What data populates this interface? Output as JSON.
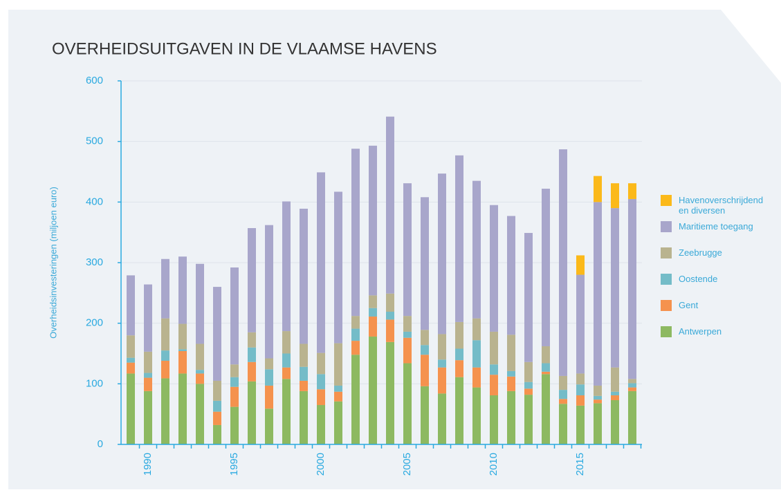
{
  "chart_data": {
    "type": "stacked_bar",
    "title": "OVERHEIDSUITGAVEN IN DE VLAAMSE HAVENS",
    "y_label": "Overheidsinvesteringen (miljoen euro)",
    "categories": [
      null,
      "1990",
      null,
      null,
      null,
      null,
      "1995",
      null,
      null,
      null,
      null,
      "2000",
      null,
      null,
      null,
      null,
      "2005",
      null,
      null,
      null,
      null,
      "2010",
      null,
      null,
      null,
      null,
      "2015",
      null,
      null,
      null
    ],
    "ylim": [
      0,
      600
    ],
    "yticks": [
      0,
      100,
      200,
      300,
      400,
      500,
      600
    ],
    "grid": true,
    "series": [
      {
        "name": "Antwerpen",
        "color": "#8db961",
        "values": [
          117,
          88,
          109,
          117,
          100,
          32,
          62,
          104,
          59,
          108,
          88,
          65,
          71,
          148,
          178,
          169,
          134,
          96,
          84,
          111,
          94,
          81,
          88,
          82,
          116,
          67,
          64,
          68,
          73,
          88
        ]
      },
      {
        "name": "Gent",
        "color": "#f5924e",
        "values": [
          18,
          22,
          29,
          37,
          17,
          22,
          33,
          32,
          38,
          19,
          17,
          26,
          16,
          23,
          33,
          37,
          42,
          52,
          43,
          28,
          33,
          34,
          24,
          10,
          4,
          8,
          17,
          6,
          8,
          6
        ]
      },
      {
        "name": "Oostende",
        "color": "#74bcc8",
        "values": [
          8,
          8,
          17,
          3,
          6,
          18,
          16,
          24,
          27,
          23,
          23,
          25,
          10,
          20,
          14,
          13,
          10,
          16,
          13,
          19,
          45,
          17,
          9,
          11,
          14,
          15,
          18,
          6,
          6,
          7
        ]
      },
      {
        "name": "Zeebrugge",
        "color": "#b9b38f",
        "values": [
          37,
          35,
          53,
          42,
          43,
          33,
          21,
          25,
          18,
          37,
          38,
          35,
          70,
          21,
          21,
          30,
          26,
          25,
          42,
          44,
          36,
          54,
          60,
          33,
          28,
          23,
          18,
          17,
          40,
          7
        ]
      },
      {
        "name": "Maritieme toegang",
        "color": "#a8a6cb",
        "values": [
          99,
          111,
          98,
          111,
          132,
          155,
          160,
          172,
          220,
          214,
          223,
          298,
          250,
          276,
          247,
          292,
          219,
          219,
          265,
          275,
          227,
          209,
          196,
          213,
          260,
          374,
          163,
          303,
          263,
          297
        ]
      },
      {
        "name": "Havenoverschrijdend en diversen",
        "color": "#fbb91a",
        "values": [
          null,
          null,
          null,
          null,
          null,
          null,
          null,
          null,
          null,
          null,
          null,
          null,
          null,
          null,
          null,
          null,
          null,
          null,
          null,
          null,
          null,
          null,
          null,
          null,
          null,
          null,
          32,
          43,
          41,
          26
        ]
      }
    ]
  }
}
